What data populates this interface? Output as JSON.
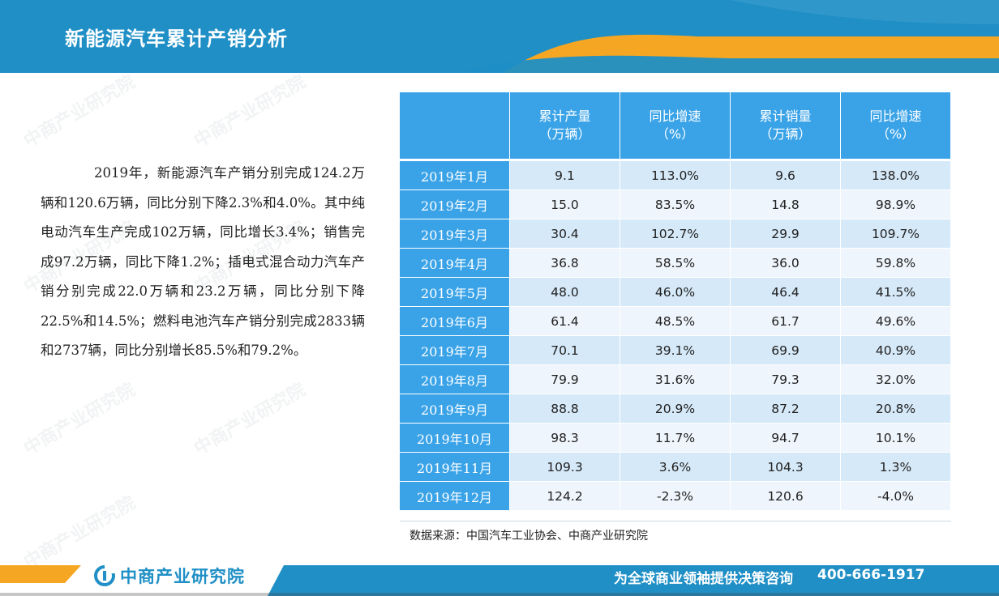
{
  "header": {
    "title": "新能源汽车累计产销分析"
  },
  "body_text": "2019年，新能源汽车产销分别完成124.2万辆和120.6万辆，同比分别下降2.3%和4.0%。其中纯电动汽车生产完成102万辆，同比增长3.4%；销售完成97.2万辆，同比下降1.2%；插电式混合动力汽车产销分别完成22.0万辆和23.2万辆，同比分别下降22.5%和14.5%；燃料电池汽车产销分别完成2833辆和2737辆，同比分别增长85.5%和79.2%。",
  "table": {
    "headers": [
      {
        "line1": "",
        "line2": ""
      },
      {
        "line1": "累计产量",
        "line2": "（万辆）"
      },
      {
        "line1": "同比增速",
        "line2": "（%）"
      },
      {
        "line1": "累计销量",
        "line2": "（万辆）"
      },
      {
        "line1": "同比增速",
        "line2": "（%）"
      }
    ],
    "rows": [
      {
        "month": "2019年1月",
        "prod": "9.1",
        "prod_yoy": "113.0%",
        "sales": "9.6",
        "sales_yoy": "138.0%"
      },
      {
        "month": "2019年2月",
        "prod": "15.0",
        "prod_yoy": "83.5%",
        "sales": "14.8",
        "sales_yoy": "98.9%"
      },
      {
        "month": "2019年3月",
        "prod": "30.4",
        "prod_yoy": "102.7%",
        "sales": "29.9",
        "sales_yoy": "109.7%"
      },
      {
        "month": "2019年4月",
        "prod": "36.8",
        "prod_yoy": "58.5%",
        "sales": "36.0",
        "sales_yoy": "59.8%"
      },
      {
        "month": "2019年5月",
        "prod": "48.0",
        "prod_yoy": "46.0%",
        "sales": "46.4",
        "sales_yoy": "41.5%"
      },
      {
        "month": "2019年6月",
        "prod": "61.4",
        "prod_yoy": "48.5%",
        "sales": "61.7",
        "sales_yoy": "49.6%"
      },
      {
        "month": "2019年7月",
        "prod": "70.1",
        "prod_yoy": "39.1%",
        "sales": "69.9",
        "sales_yoy": "40.9%"
      },
      {
        "month": "2019年8月",
        "prod": "79.9",
        "prod_yoy": "31.6%",
        "sales": "79.3",
        "sales_yoy": "32.0%"
      },
      {
        "month": "2019年9月",
        "prod": "88.8",
        "prod_yoy": "20.9%",
        "sales": "87.2",
        "sales_yoy": "20.8%"
      },
      {
        "month": "2019年10月",
        "prod": "98.3",
        "prod_yoy": "11.7%",
        "sales": "94.7",
        "sales_yoy": "10.1%"
      },
      {
        "month": "2019年11月",
        "prod": "109.3",
        "prod_yoy": "3.6%",
        "sales": "104.3",
        "sales_yoy": "1.3%"
      },
      {
        "month": "2019年12月",
        "prod": "124.2",
        "prod_yoy": "-2.3%",
        "sales": "120.6",
        "sales_yoy": "-4.0%"
      }
    ]
  },
  "source": "数据来源：中国汽车工业协会、中商产业研究院",
  "footer": {
    "logo_text": "中商产业研究院",
    "slogan": "为全球商业领袖提供决策咨询",
    "phone": "400-666-1917"
  },
  "watermark": "中商产业研究院",
  "colors": {
    "header_blue": "#1f8fc6",
    "accent_orange": "#f5a623",
    "table_blue": "#3aa3e8",
    "row_light": "#d6e9f8",
    "row_lighter": "#eef5fc"
  }
}
